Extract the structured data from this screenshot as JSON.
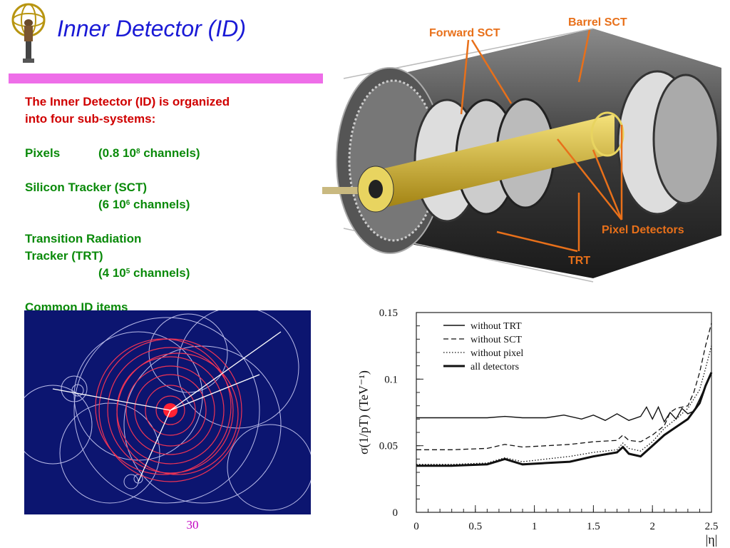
{
  "slide": {
    "title": "Inner Detector (ID)",
    "page_number": "30",
    "intro_line1": "The Inner Detector (ID) is organized",
    "intro_line2": "into four sub-systems:",
    "pixels_label": "Pixels",
    "pixels_channels_pre": "(0.8 10",
    "pixels_channels_exp": "8",
    "pixels_channels_post": " channels)",
    "sct_label": "Silicon Tracker (SCT)",
    "sct_channels_pre": "(6 10",
    "sct_channels_exp": "6",
    "sct_channels_post": " channels)",
    "trt_label_line1": "Transition Radiation",
    "trt_label_line2": "Tracker (TRT)",
    "trt_channels_pre": "(4 10",
    "trt_channels_exp": "5",
    "trt_channels_post": " channels)",
    "common_items": "Common ID items"
  },
  "detector_labels": {
    "forward_sct": "Forward SCT",
    "barrel_sct": "Barrel SCT",
    "pixel_detectors": "Pixel Detectors",
    "trt": "TRT"
  },
  "colors": {
    "title": "#1a1ad6",
    "rule": "#ee6ee8",
    "body_text": "#d00000",
    "green_text": "#0a8a0a",
    "label_orange": "#e8701a",
    "event_bg": "#0c1570",
    "page_number": "#c000c0"
  },
  "chart_data": {
    "type": "line",
    "ylabel": "σ(1/pT) (TeV⁻¹)",
    "xlabel": "|η|",
    "xlim": [
      0,
      2.5
    ],
    "ylim": [
      0,
      0.15
    ],
    "x_ticks": [
      "0",
      "0.5",
      "1",
      "1.5",
      "2",
      "2.5"
    ],
    "y_ticks": [
      "0",
      "0.05",
      "0.1",
      "0.15"
    ],
    "legend_position": "top-left",
    "grid": false,
    "series": [
      {
        "name": "without TRT",
        "style": "solid",
        "x": [
          0,
          0.3,
          0.6,
          0.75,
          0.9,
          1.1,
          1.25,
          1.4,
          1.5,
          1.6,
          1.7,
          1.8,
          1.9,
          1.95,
          2.0,
          2.05,
          2.1,
          2.15,
          2.2,
          2.25,
          2.3,
          2.35,
          2.4,
          2.45,
          2.5
        ],
        "y": [
          0.071,
          0.071,
          0.071,
          0.072,
          0.071,
          0.071,
          0.073,
          0.07,
          0.073,
          0.069,
          0.074,
          0.069,
          0.072,
          0.079,
          0.07,
          0.079,
          0.068,
          0.075,
          0.07,
          0.078,
          0.074,
          0.076,
          0.085,
          0.095,
          0.105
        ]
      },
      {
        "name": "without SCT",
        "style": "dashed",
        "x": [
          0,
          0.3,
          0.6,
          0.75,
          0.9,
          1.1,
          1.3,
          1.5,
          1.7,
          1.75,
          1.8,
          1.9,
          2.0,
          2.1,
          2.15,
          2.2,
          2.3,
          2.35,
          2.4,
          2.45,
          2.5
        ],
        "y": [
          0.047,
          0.047,
          0.048,
          0.051,
          0.049,
          0.05,
          0.051,
          0.053,
          0.054,
          0.058,
          0.054,
          0.053,
          0.058,
          0.065,
          0.075,
          0.078,
          0.08,
          0.09,
          0.105,
          0.125,
          0.142
        ]
      },
      {
        "name": "without pixel",
        "style": "dotted",
        "x": [
          0,
          0.3,
          0.6,
          0.75,
          0.9,
          1.1,
          1.3,
          1.5,
          1.7,
          1.75,
          1.8,
          1.9,
          2.0,
          2.1,
          2.2,
          2.3,
          2.4,
          2.45,
          2.5
        ],
        "y": [
          0.036,
          0.036,
          0.037,
          0.041,
          0.038,
          0.04,
          0.042,
          0.045,
          0.047,
          0.052,
          0.048,
          0.046,
          0.053,
          0.063,
          0.07,
          0.078,
          0.092,
          0.108,
          0.125
        ]
      },
      {
        "name": "all detectors",
        "style": "thick",
        "x": [
          0,
          0.3,
          0.6,
          0.75,
          0.9,
          1.1,
          1.3,
          1.5,
          1.7,
          1.75,
          1.8,
          1.9,
          2.0,
          2.1,
          2.2,
          2.3,
          2.4,
          2.45,
          2.5
        ],
        "y": [
          0.035,
          0.035,
          0.036,
          0.04,
          0.036,
          0.037,
          0.038,
          0.042,
          0.045,
          0.049,
          0.044,
          0.042,
          0.05,
          0.058,
          0.064,
          0.07,
          0.082,
          0.095,
          0.105
        ]
      }
    ]
  }
}
